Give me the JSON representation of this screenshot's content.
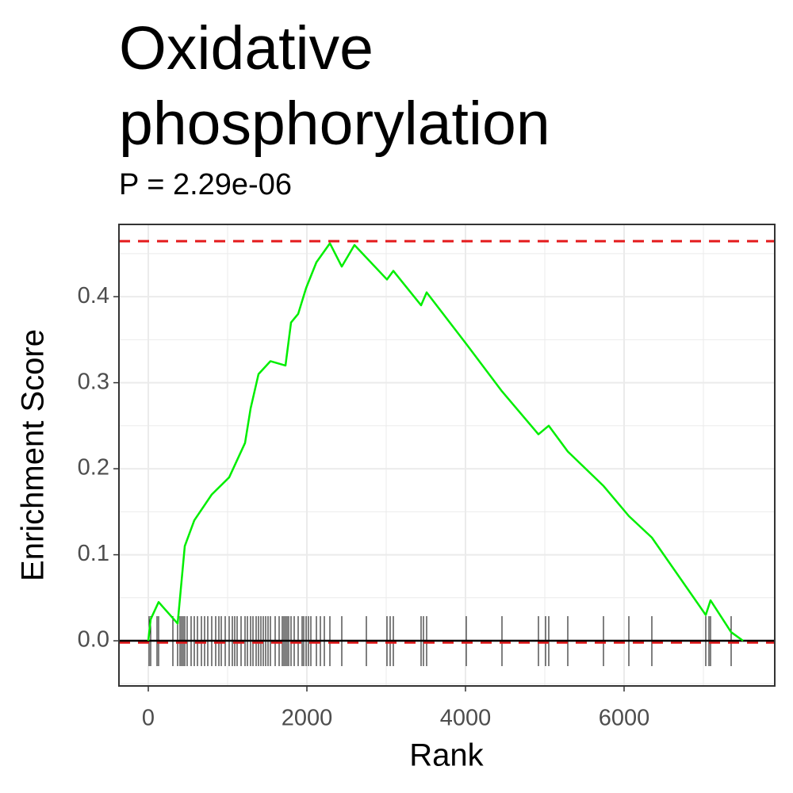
{
  "chart_data": {
    "type": "line",
    "title": "Oxidative phosphorylation",
    "subtitle": "P = 2.29e-06",
    "x_label": "Rank",
    "y_label": "Enrichment Score",
    "xlim": [
      -370,
      7900
    ],
    "ylim": [
      -0.0525,
      0.484
    ],
    "xticks": [
      0,
      2000,
      4000,
      6000
    ],
    "yticks": [
      {
        "value": 0,
        "label": "0.0"
      },
      {
        "value": 0.1,
        "label": "0.1"
      },
      {
        "value": 0.2,
        "label": "0.2"
      },
      {
        "value": 0.3,
        "label": "0.3"
      },
      {
        "value": 0.4,
        "label": "0.4"
      }
    ],
    "x_minor_grid": [
      1000,
      3000,
      5000,
      7000
    ],
    "y_minor_grid": [
      -0.05,
      0.05,
      0.15,
      0.25,
      0.35,
      0.45
    ],
    "grid": true,
    "x": [
      0,
      30,
      130,
      370,
      460,
      580,
      800,
      1020,
      1220,
      1290,
      1390,
      1540,
      1730,
      1800,
      1890,
      1990,
      2120,
      2290,
      2440,
      2600,
      3010,
      3090,
      3440,
      3510,
      4010,
      4460,
      4920,
      5050,
      5290,
      5740,
      6060,
      6350,
      7030,
      7090,
      7350,
      7500
    ],
    "series": [
      {
        "color": "#00ee00",
        "values": [
          0,
          0.025,
          0.045,
          0.02,
          0.11,
          0.14,
          0.17,
          0.19,
          0.23,
          0.27,
          0.31,
          0.325,
          0.32,
          0.37,
          0.38,
          0.41,
          0.44,
          0.462,
          0.435,
          0.46,
          0.42,
          0.43,
          0.39,
          0.405,
          0.345,
          0.29,
          0.24,
          0.25,
          0.22,
          0.18,
          0.145,
          0.12,
          0.03,
          0.047,
          0.01,
          0
        ]
      }
    ],
    "hits": [
      10,
      30,
      110,
      130,
      310,
      370,
      400,
      420,
      440,
      460,
      490,
      540,
      580,
      620,
      670,
      710,
      750,
      800,
      850,
      890,
      920,
      970,
      1020,
      1060,
      1090,
      1120,
      1170,
      1220,
      1250,
      1290,
      1320,
      1360,
      1390,
      1420,
      1450,
      1480,
      1510,
      1540,
      1600,
      1650,
      1690,
      1710,
      1730,
      1750,
      1770,
      1800,
      1840,
      1890,
      1940,
      1960,
      1990,
      2020,
      2050,
      2120,
      2170,
      2220,
      2290,
      2440,
      2750,
      3010,
      3050,
      3090,
      3440,
      3470,
      3510,
      4010,
      4460,
      4920,
      5010,
      5050,
      5290,
      5740,
      6060,
      6350,
      7030,
      7070,
      7090,
      7350
    ],
    "hits_color": "#000000",
    "reference_lines": [
      {
        "value": 0.4645,
        "color": "#e41a1c"
      },
      {
        "value": -0.002,
        "color": "#e41a1c"
      }
    ],
    "zero_line": 0
  }
}
